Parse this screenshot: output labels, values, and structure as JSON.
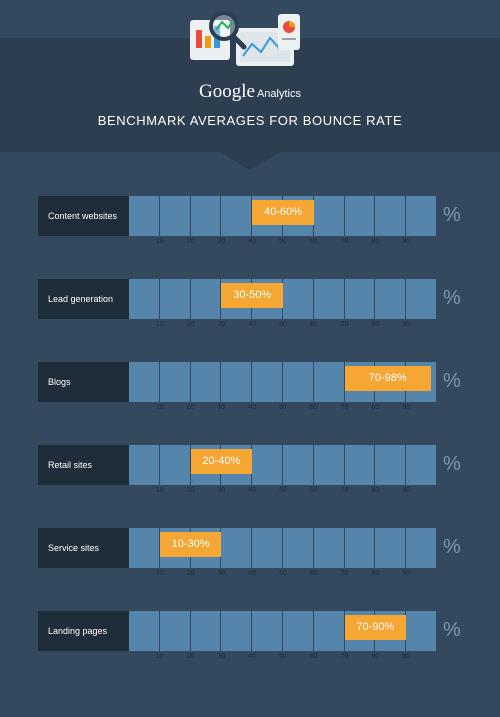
{
  "header": {
    "brand": "Google",
    "product": "Analytics",
    "subtitle": "BENCHMARK AVERAGES FOR BOUNCE RATE"
  },
  "chart_data": {
    "type": "bar",
    "subtype": "floating-range",
    "title": "BENCHMARK AVERAGES FOR BOUNCE RATE",
    "unit": "%",
    "xlim": [
      0,
      100
    ],
    "ticks": [
      "10",
      "20",
      "30",
      "40",
      "50",
      "60",
      "70",
      "80",
      "90"
    ],
    "rows": [
      {
        "category": "Content websites",
        "low": 40,
        "high": 60,
        "label": "40-60%"
      },
      {
        "category": "Lead generation",
        "low": 30,
        "high": 50,
        "label": "30-50%"
      },
      {
        "category": "Blogs",
        "low": 70,
        "high": 98,
        "label": "70-98%"
      },
      {
        "category": "Retail sites",
        "low": 20,
        "high": 40,
        "label": "20-40%"
      },
      {
        "category": "Service sites",
        "low": 10,
        "high": 30,
        "label": "10-30%"
      },
      {
        "category": "Landing pages",
        "low": 70,
        "high": 90,
        "label": "70-90%"
      }
    ]
  },
  "colors": {
    "background": "#34495e",
    "header": "#2c3e50",
    "label_box": "#1f2c39",
    "bar": "#5585ab",
    "range": "#f5a633",
    "percent_sign": "#7f97ad"
  }
}
